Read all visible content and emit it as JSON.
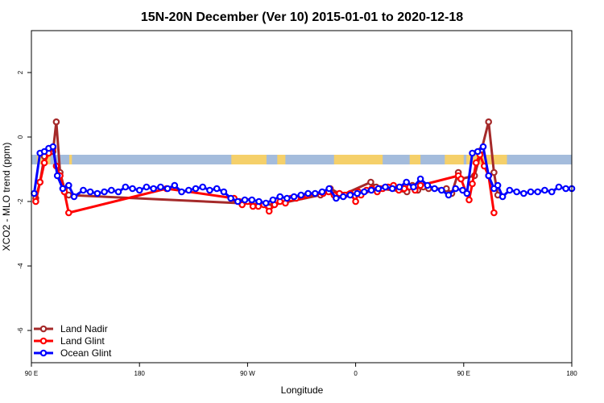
{
  "chart_data": {
    "type": "line",
    "title": "15N-20N December (Ver 10)   2015-01-01 to 2020-12-18",
    "xlabel": "Longitude",
    "ylabel": "XCO2 - MLO trend (ppm)",
    "xlim": [
      0,
      100
    ],
    "ylim": [
      -7,
      3.3
    ],
    "x_ticks": [
      {
        "pos": 0,
        "label": "90 E"
      },
      {
        "pos": 20,
        "label": "180"
      },
      {
        "pos": 40,
        "label": "90 W"
      },
      {
        "pos": 60,
        "label": "0"
      },
      {
        "pos": 80,
        "label": "90 E"
      },
      {
        "pos": 100,
        "label": "180"
      }
    ],
    "y_ticks": [
      {
        "value": 2,
        "label": "2"
      },
      {
        "value": 0,
        "label": "0"
      },
      {
        "value": -2,
        "label": "-2"
      },
      {
        "value": -4,
        "label": "-4"
      },
      {
        "value": -6,
        "label": "-6"
      }
    ],
    "map_strip": {
      "y_range": [
        -0.55,
        -0.85
      ],
      "ocean_color": "#a4bcdc",
      "land_color": "#f5d06a",
      "land_x_ranges": [
        [
          1,
          3.5
        ],
        [
          7,
          7.5
        ],
        [
          37,
          43.5
        ],
        [
          45.5,
          47
        ],
        [
          56,
          65
        ],
        [
          70,
          72
        ],
        [
          76.5,
          80
        ],
        [
          80.5,
          82
        ],
        [
          82,
          88
        ]
      ]
    },
    "legend_position": "bottom-left",
    "series": [
      {
        "name": "Land Nadir",
        "color": "#a52a2a",
        "points": [
          [
            0.8,
            -1.9
          ],
          [
            1.6,
            -1.4
          ],
          [
            2.4,
            -0.6
          ],
          [
            3.2,
            -0.4
          ],
          [
            4.0,
            -0.45
          ],
          [
            4.6,
            0.47
          ],
          [
            5.3,
            -1.1
          ],
          [
            6.1,
            -1.6
          ],
          [
            6.9,
            -1.8
          ],
          [
            44.8,
            -2.1
          ],
          [
            53.5,
            -1.8
          ],
          [
            55.3,
            -1.6
          ],
          [
            57.5,
            -1.8
          ],
          [
            62.8,
            -1.4
          ],
          [
            63.8,
            -1.55
          ],
          [
            64.5,
            -1.6
          ],
          [
            69.5,
            -1.7
          ],
          [
            70.5,
            -1.5
          ],
          [
            71.5,
            -1.65
          ],
          [
            72.5,
            -1.55
          ],
          [
            73.5,
            -1.6
          ],
          [
            76.8,
            -1.6
          ],
          [
            77.8,
            -1.75
          ],
          [
            79.0,
            -1.1
          ],
          [
            79.5,
            -1.3
          ],
          [
            82.0,
            -1.2
          ],
          [
            83.3,
            -0.4
          ],
          [
            84.6,
            0.47
          ],
          [
            85.6,
            -1.1
          ],
          [
            86.3,
            -1.8
          ]
        ]
      },
      {
        "name": "Land Glint",
        "color": "#ff0000",
        "points": [
          [
            0.8,
            -2.0
          ],
          [
            1.6,
            -1.4
          ],
          [
            2.4,
            -0.8
          ],
          [
            3.2,
            -0.5
          ],
          [
            4.0,
            -0.35
          ],
          [
            4.6,
            -0.9
          ],
          [
            5.3,
            -1.2
          ],
          [
            6.1,
            -1.7
          ],
          [
            6.9,
            -2.35
          ],
          [
            25.0,
            -1.6
          ],
          [
            37.5,
            -1.9
          ],
          [
            38.5,
            -2.0
          ],
          [
            39.0,
            -2.1
          ],
          [
            40.0,
            -2.0
          ],
          [
            41.0,
            -2.15
          ],
          [
            42.0,
            -2.15
          ],
          [
            43.0,
            -2.1
          ],
          [
            44.0,
            -2.3
          ],
          [
            45.0,
            -2.1
          ],
          [
            46.0,
            -2.0
          ],
          [
            47.0,
            -2.05
          ],
          [
            48.0,
            -1.9
          ],
          [
            49.0,
            -1.9
          ],
          [
            50.0,
            -1.85
          ],
          [
            51.0,
            -1.8
          ],
          [
            54.0,
            -1.75
          ],
          [
            55.0,
            -1.7
          ],
          [
            56.0,
            -1.8
          ],
          [
            57.0,
            -1.75
          ],
          [
            58.0,
            -1.8
          ],
          [
            59.0,
            -1.75
          ],
          [
            60.0,
            -2.0
          ],
          [
            60.5,
            -1.7
          ],
          [
            61.0,
            -1.8
          ],
          [
            62.0,
            -1.65
          ],
          [
            63.0,
            -1.6
          ],
          [
            64.0,
            -1.7
          ],
          [
            65.0,
            -1.6
          ],
          [
            66.0,
            -1.55
          ],
          [
            67.0,
            -1.5
          ],
          [
            68.0,
            -1.65
          ],
          [
            69.0,
            -1.6
          ],
          [
            70.0,
            -1.55
          ],
          [
            71.0,
            -1.65
          ],
          [
            72.0,
            -1.5
          ],
          [
            79.0,
            -1.2
          ],
          [
            79.5,
            -1.3
          ],
          [
            81.0,
            -1.95
          ],
          [
            81.6,
            -1.45
          ],
          [
            82.3,
            -0.8
          ],
          [
            83.0,
            -0.55
          ],
          [
            83.8,
            -0.9
          ],
          [
            84.6,
            -1.2
          ],
          [
            85.6,
            -2.35
          ]
        ]
      },
      {
        "name": "Ocean Glint",
        "color": "#0000ff",
        "points": [
          [
            0.5,
            -1.75
          ],
          [
            1.6,
            -0.5
          ],
          [
            2.4,
            -0.45
          ],
          [
            3.2,
            -0.35
          ],
          [
            4.0,
            -0.3
          ],
          [
            4.8,
            -1.2
          ],
          [
            5.8,
            -1.6
          ],
          [
            6.9,
            -1.5
          ],
          [
            7.9,
            -1.85
          ],
          [
            9.6,
            -1.65
          ],
          [
            10.9,
            -1.7
          ],
          [
            12.2,
            -1.75
          ],
          [
            13.5,
            -1.7
          ],
          [
            14.8,
            -1.65
          ],
          [
            16.1,
            -1.7
          ],
          [
            17.4,
            -1.55
          ],
          [
            18.7,
            -1.6
          ],
          [
            20.0,
            -1.65
          ],
          [
            21.3,
            -1.55
          ],
          [
            22.6,
            -1.6
          ],
          [
            23.9,
            -1.55
          ],
          [
            25.2,
            -1.6
          ],
          [
            26.5,
            -1.5
          ],
          [
            27.8,
            -1.7
          ],
          [
            29.1,
            -1.65
          ],
          [
            30.4,
            -1.6
          ],
          [
            31.7,
            -1.55
          ],
          [
            33.0,
            -1.65
          ],
          [
            34.3,
            -1.6
          ],
          [
            35.6,
            -1.7
          ],
          [
            36.9,
            -1.9
          ],
          [
            38.2,
            -2.0
          ],
          [
            39.5,
            -1.95
          ],
          [
            40.8,
            -1.95
          ],
          [
            42.1,
            -2.0
          ],
          [
            43.4,
            -2.05
          ],
          [
            44.7,
            -1.95
          ],
          [
            46.0,
            -1.85
          ],
          [
            47.3,
            -1.9
          ],
          [
            48.6,
            -1.85
          ],
          [
            49.9,
            -1.8
          ],
          [
            51.2,
            -1.75
          ],
          [
            52.5,
            -1.75
          ],
          [
            53.8,
            -1.7
          ],
          [
            55.1,
            -1.6
          ],
          [
            56.4,
            -1.9
          ],
          [
            57.7,
            -1.85
          ],
          [
            59.0,
            -1.8
          ],
          [
            60.3,
            -1.75
          ],
          [
            61.6,
            -1.7
          ],
          [
            62.9,
            -1.65
          ],
          [
            64.2,
            -1.6
          ],
          [
            65.5,
            -1.55
          ],
          [
            66.8,
            -1.6
          ],
          [
            68.1,
            -1.55
          ],
          [
            69.4,
            -1.4
          ],
          [
            70.7,
            -1.55
          ],
          [
            72.0,
            -1.3
          ],
          [
            73.3,
            -1.5
          ],
          [
            74.6,
            -1.6
          ],
          [
            75.9,
            -1.65
          ],
          [
            77.2,
            -1.8
          ],
          [
            78.5,
            -1.6
          ],
          [
            79.8,
            -1.65
          ],
          [
            80.6,
            -1.75
          ],
          [
            81.6,
            -0.5
          ],
          [
            82.6,
            -0.45
          ],
          [
            83.6,
            -0.3
          ],
          [
            84.6,
            -1.2
          ],
          [
            85.6,
            -1.6
          ],
          [
            86.3,
            -1.5
          ],
          [
            87.2,
            -1.85
          ],
          [
            88.5,
            -1.65
          ],
          [
            89.8,
            -1.7
          ],
          [
            91.1,
            -1.75
          ],
          [
            92.4,
            -1.7
          ],
          [
            93.7,
            -1.7
          ],
          [
            95.0,
            -1.65
          ],
          [
            96.3,
            -1.7
          ],
          [
            97.6,
            -1.55
          ],
          [
            98.9,
            -1.6
          ],
          [
            100.0,
            -1.6
          ]
        ]
      }
    ]
  }
}
